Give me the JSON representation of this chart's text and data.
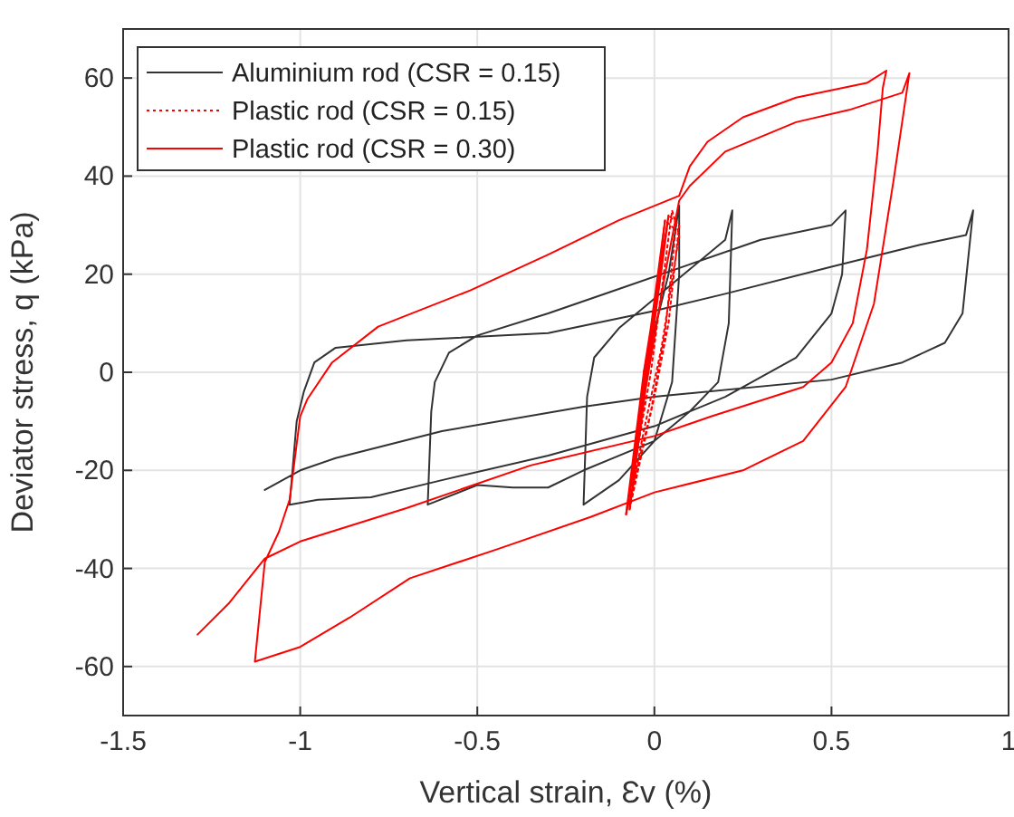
{
  "chart_data": {
    "type": "line",
    "xlabel": "Vertical strain, Ɛv (%)",
    "ylabel": "Deviator stress, q (kPa)",
    "xlim": [
      -1.5,
      1
    ],
    "xticks": [
      -1.5,
      -1,
      -0.5,
      0,
      0.5,
      1
    ],
    "ylim": [
      -70,
      70
    ],
    "yticks": [
      -60,
      -40,
      -20,
      0,
      20,
      40,
      60
    ],
    "grid": true,
    "legend": "top left",
    "marker": "none",
    "series": [
      {
        "name": "Aluminium rod (CSR = 0.15)",
        "color": "#333333",
        "line_style": "solid",
        "x": [
          -1.1,
          -1.0,
          -0.9,
          -0.6,
          -0.2,
          0,
          0.5,
          0.7,
          0.82,
          0.87,
          0.9,
          0.88,
          0.75,
          0.5,
          0.2,
          0,
          -0.3,
          -0.7,
          -0.9,
          -0.96,
          -0.99,
          -1.01,
          -1.03,
          -0.95,
          -0.8,
          -0.6,
          -0.3,
          0,
          0.2,
          0.4,
          0.5,
          0.53,
          0.54,
          0.5,
          0.3,
          0.1,
          -0.1,
          -0.3,
          -0.5,
          -0.58,
          -0.62,
          -0.63,
          -0.64,
          -0.5,
          -0.4,
          -0.3,
          -0.2,
          0,
          0.1,
          0.18,
          0.21,
          0.22,
          0.2,
          0.1,
          0,
          -0.1,
          -0.17,
          -0.19,
          -0.2,
          -0.1,
          0,
          0.05,
          0.07,
          0.07,
          0.04,
          -0.03
        ],
        "values": [
          -24,
          -20,
          -17.5,
          -12,
          -7,
          -5,
          -1.5,
          2,
          6,
          12,
          33,
          28,
          26,
          21.5,
          16,
          12.5,
          8,
          6.5,
          5,
          2,
          -4,
          -10,
          -27,
          -26,
          -25.5,
          -22,
          -17,
          -11,
          -5,
          3,
          12,
          20,
          33,
          30,
          27,
          22,
          17,
          12,
          7.5,
          4,
          -2,
          -8,
          -27,
          -23,
          -23.5,
          -23.5,
          -20,
          -14,
          -8,
          -2,
          10,
          33,
          27,
          21,
          15,
          9,
          3,
          -5,
          -27,
          -22,
          -14,
          -2,
          20,
          34,
          20,
          0
        ]
      },
      {
        "name": "Plastic rod (CSR = 0.15)",
        "color": "#ff0000",
        "line_style": "dotted",
        "x": [
          -0.08,
          -0.02,
          0.04,
          0.07,
          0.04,
          0,
          -0.04,
          -0.07,
          -0.02,
          0.03,
          0.06,
          0.03,
          -0.01,
          -0.05,
          -0.08,
          -0.01,
          0.05,
          0.07,
          0.02,
          -0.03,
          -0.07
        ],
        "values": [
          -29,
          0,
          32,
          30,
          10,
          -5,
          -18,
          -28,
          0,
          31,
          29,
          8,
          -8,
          -20,
          -29,
          0,
          33,
          28,
          5,
          -12,
          -27
        ]
      },
      {
        "name": "Plastic rod (CSR = 0.30)",
        "color": "#ff0000",
        "line_style": "solid",
        "x": [
          -1.29,
          -1.2,
          -1.1,
          -1.0,
          -0.7,
          -0.35,
          0,
          0.16,
          0.42,
          0.5,
          0.56,
          0.6,
          0.63,
          0.645,
          0.655,
          0.6,
          0.4,
          0.25,
          0.15,
          0.1,
          0.07,
          -0.1,
          -0.3,
          -0.52,
          -0.78,
          -0.91,
          -0.98,
          -1.0,
          -1.03,
          -1.06,
          -1.1,
          -1.128,
          -1.0,
          -0.86,
          -0.69,
          -0.44,
          -0.18,
          0,
          0.25,
          0.42,
          0.54,
          0.62,
          0.675,
          0.72,
          0.7,
          0.55,
          0.4,
          0.2,
          0.1,
          0.07,
          0.03,
          -0.04,
          -0.08,
          -0.03,
          0.04,
          0,
          -0.07,
          0.03,
          -0.08,
          0.04
        ],
        "values": [
          -53.5,
          -47,
          -38,
          -34.5,
          -27.7,
          -19,
          -13,
          -9,
          -3,
          2,
          10,
          25,
          45,
          58,
          61.5,
          59,
          56,
          52,
          47,
          42,
          36,
          31,
          24,
          16.7,
          9.3,
          2,
          -5.5,
          -9,
          -26,
          -32.5,
          -38.7,
          -59,
          -56,
          -50,
          -42,
          -36,
          -29.5,
          -24.5,
          -20,
          -14,
          -3,
          14,
          39,
          61,
          57,
          53.5,
          51,
          45,
          38,
          35,
          20,
          -10,
          -29,
          0,
          32,
          10,
          -28,
          31,
          -29,
          32
        ]
      }
    ]
  }
}
